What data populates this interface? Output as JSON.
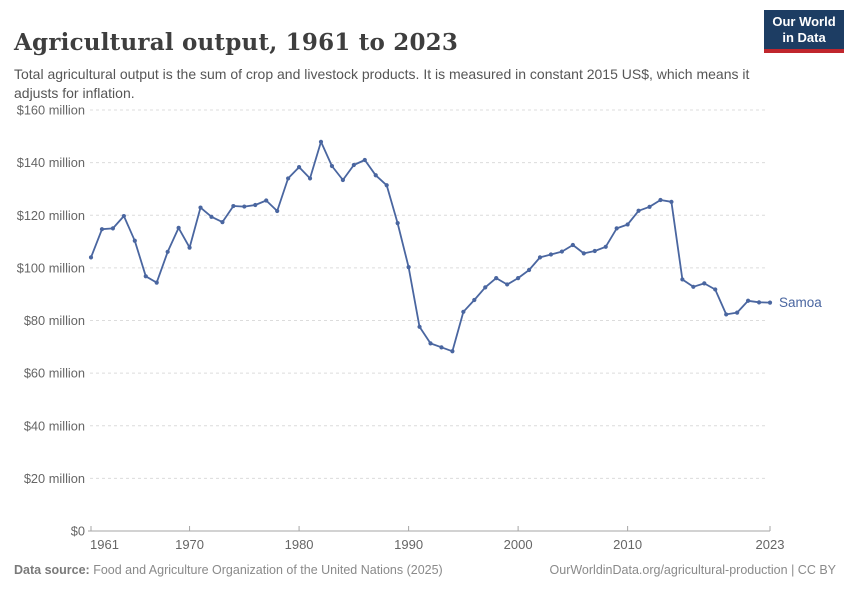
{
  "header": {
    "title": "Agricultural output, 1961 to 2023",
    "subtitle": "Total agricultural output is the sum of crop and livestock products. It is measured in constant 2015 US$, which means it adjusts for inflation.",
    "logo": {
      "line1": "Our World",
      "line2": "in Data",
      "bg_color": "#1d3d63",
      "accent_color": "#c0262d"
    }
  },
  "chart_data": {
    "type": "line",
    "title": "Agricultural output, 1961 to 2023",
    "unit": "constant 2015 US$",
    "grid": "horizontal dashed",
    "legend_position": "end-of-line label",
    "xlim": [
      1961,
      2023
    ],
    "ylim": [
      0,
      160000000
    ],
    "x_axis": {
      "ticks": [
        {
          "value": 1961,
          "label": "1961"
        },
        {
          "value": 1970,
          "label": "1970"
        },
        {
          "value": 1980,
          "label": "1980"
        },
        {
          "value": 1990,
          "label": "1990"
        },
        {
          "value": 2000,
          "label": "2000"
        },
        {
          "value": 2010,
          "label": "2010"
        },
        {
          "value": 2023,
          "label": "2023"
        }
      ]
    },
    "y_axis": {
      "ticks": [
        {
          "value": 0,
          "label": "$0"
        },
        {
          "value": 20,
          "label": "$20 million"
        },
        {
          "value": 40,
          "label": "$40 million"
        },
        {
          "value": 60,
          "label": "$60 million"
        },
        {
          "value": 80,
          "label": "$80 million"
        },
        {
          "value": 100,
          "label": "$100 million"
        },
        {
          "value": 120,
          "label": "$120 million"
        },
        {
          "value": 140,
          "label": "$140 million"
        },
        {
          "value": 160,
          "label": "$160 million"
        }
      ],
      "unit_of_values": "million US$"
    },
    "series": [
      {
        "name": "Samoa",
        "color": "#4a66a0",
        "x": [
          1961,
          1962,
          1963,
          1964,
          1965,
          1966,
          1967,
          1968,
          1969,
          1970,
          1971,
          1972,
          1973,
          1974,
          1975,
          1976,
          1977,
          1978,
          1979,
          1980,
          1981,
          1982,
          1983,
          1984,
          1985,
          1986,
          1987,
          1988,
          1989,
          1990,
          1991,
          1992,
          1993,
          1994,
          1995,
          1996,
          1997,
          1998,
          1999,
          2000,
          2001,
          2002,
          2003,
          2004,
          2005,
          2006,
          2007,
          2008,
          2009,
          2010,
          2011,
          2012,
          2013,
          2014,
          2015,
          2016,
          2017,
          2018,
          2019,
          2020,
          2021,
          2022,
          2023
        ],
        "values": [
          104,
          114.7,
          115,
          119.7,
          110.3,
          96.8,
          94.4,
          106.1,
          115.2,
          107.7,
          122.9,
          119.4,
          117.4,
          123.5,
          123.3,
          123.9,
          125.6,
          121.6,
          134,
          138.3,
          134,
          147.9,
          138.7,
          133.4,
          139.1,
          141,
          135.2,
          131.4,
          117,
          100.3,
          77.6,
          71.3,
          69.8,
          68.3,
          83.3,
          87.8,
          92.6,
          96.1,
          93.7,
          96.1,
          99.2,
          104,
          105.1,
          106.2,
          108.7,
          105.5,
          106.4,
          108,
          115,
          116.5,
          121.7,
          123.2,
          125.8,
          125.1,
          95.6,
          92.8,
          94.1,
          91.8,
          82.3,
          83,
          87.5,
          86.9,
          86.8
        ]
      }
    ]
  },
  "footer": {
    "datasource_label": "Data source:",
    "datasource": " Food and Agriculture Organization of the United Nations (2025)",
    "link": "OurWorldinData.org/agricultural-production",
    "separator": " | ",
    "license": "CC BY"
  }
}
